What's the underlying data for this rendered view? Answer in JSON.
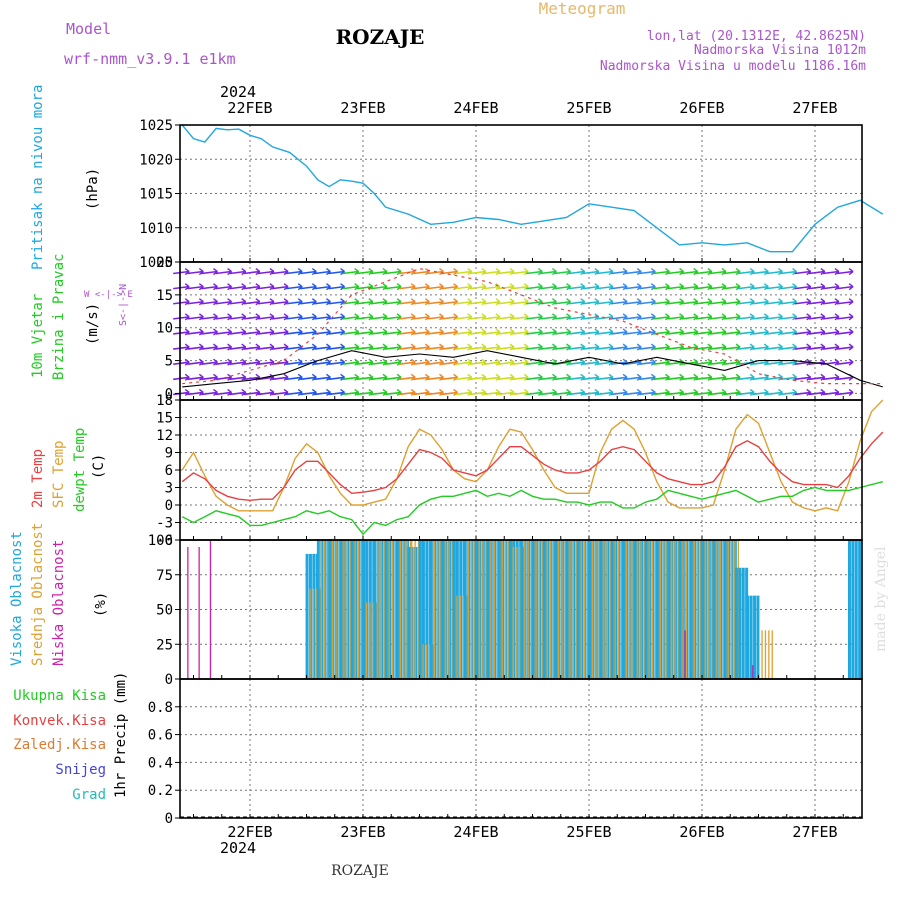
{
  "header": {
    "model_label": "Model",
    "model_name": "wrf-nmm_v3.9.1  e1km",
    "station": "ROZAJE",
    "meteogram": "Meteogram",
    "lonlat": "lon,lat (20.1312E, 42.8625N)",
    "elevation": "Nadmorska Visina 1012m",
    "model_elevation": "Nadmorska Visina u modelu 1186.16m",
    "footer_station": "ROZAJE",
    "watermark": "made by Angel"
  },
  "colors": {
    "pressure": "#1fa7e0",
    "green": "#22cc22",
    "red": "#e84040",
    "orange": "#e0a030",
    "magenta": "#cc22aa",
    "purple": "#aa55cc",
    "blue": "#4444dd",
    "teal": "#22bbbb",
    "title_gold": "#e6b86a"
  },
  "time_axis": {
    "top_year": "2024",
    "bottom_year": "2024",
    "days": [
      "22FEB",
      "23FEB",
      "24FEB",
      "25FEB",
      "26FEB",
      "27FEB"
    ]
  },
  "chart_data": [
    {
      "type": "line",
      "panel": "pressure",
      "ylabel_main": "Pritisak na nivou mora",
      "ylabel_unit": "(hPa)",
      "ylim": [
        1005,
        1025
      ],
      "yticks": [
        1005,
        1010,
        1015,
        1020,
        1025
      ],
      "x_days": [
        -0.6,
        -0.5,
        -0.4,
        -0.3,
        -0.2,
        -0.1,
        0,
        0.1,
        0.2,
        0.35,
        0.5,
        0.6,
        0.7,
        0.8,
        0.9,
        1.0,
        1.1,
        1.2,
        1.4,
        1.6,
        1.8,
        2.0,
        2.2,
        2.4,
        2.6,
        2.8,
        3.0,
        3.2,
        3.4,
        3.6,
        3.8,
        4.0,
        4.2,
        4.4,
        4.6,
        4.8,
        5.0,
        5.2,
        5.4,
        5.6
      ],
      "series": [
        {
          "values": [
            1025,
            1023,
            1022.5,
            1024.5,
            1024.3,
            1024.4,
            1023.5,
            1023,
            1021.8,
            1021,
            1019,
            1017,
            1016,
            1017,
            1016.8,
            1016.5,
            1015,
            1013,
            1012,
            1010.5,
            1010.8,
            1011.5,
            1011.2,
            1010.5,
            1011,
            1011.5,
            1013.5,
            1013,
            1012.5,
            1010,
            1007.5,
            1007.8,
            1007.5,
            1007.8,
            1006.5,
            1006.5,
            1010.5,
            1013,
            1014,
            1012
          ]
        }
      ]
    },
    {
      "type": "line",
      "panel": "wind",
      "ylabel_main": "10m Vjetar",
      "ylabel_sub": "Brzina i Pravac",
      "ylabel_unit": "(m/s)",
      "compass": "W  <-|->  E",
      "compass_vertical": "S<-|->N",
      "ylim": [
        -1,
        20
      ],
      "yticks": [
        0,
        5,
        10,
        15,
        20
      ],
      "x_days": [
        -0.6,
        -0.3,
        0,
        0.3,
        0.6,
        0.9,
        1.2,
        1.5,
        1.8,
        2.1,
        2.4,
        2.7,
        3.0,
        3.3,
        3.6,
        3.9,
        4.2,
        4.5,
        4.8,
        5.1,
        5.4,
        5.6
      ],
      "series": [
        {
          "name": "speed",
          "values": [
            1,
            1.5,
            2,
            3,
            5,
            6.5,
            5.5,
            6,
            5.5,
            6.5,
            5.5,
            4.5,
            5.5,
            4.5,
            5.5,
            4.5,
            3.5,
            5,
            5,
            4.5,
            2,
            1
          ]
        },
        {
          "name": "gust",
          "values": [
            1.5,
            2,
            3.5,
            5,
            9,
            15,
            17,
            19,
            18,
            17,
            15,
            13,
            12,
            11,
            9,
            7,
            6,
            3,
            2,
            1.5,
            1.5,
            1.5
          ]
        }
      ]
    },
    {
      "type": "line",
      "panel": "temperature",
      "ylabel_1": "2m Temp",
      "ylabel_2": "SFC Temp",
      "ylabel_3": "dewpt Temp",
      "ylabel_unit": "(C)",
      "ylim": [
        -6,
        18
      ],
      "yticks": [
        -6,
        -3,
        0,
        3,
        6,
        9,
        12,
        15,
        18
      ],
      "x_days": [
        -0.6,
        -0.5,
        -0.4,
        -0.3,
        -0.2,
        -0.1,
        0,
        0.1,
        0.2,
        0.3,
        0.4,
        0.5,
        0.6,
        0.7,
        0.8,
        0.9,
        1.0,
        1.1,
        1.2,
        1.3,
        1.4,
        1.5,
        1.6,
        1.7,
        1.8,
        1.9,
        2.0,
        2.1,
        2.2,
        2.3,
        2.4,
        2.5,
        2.6,
        2.7,
        2.8,
        2.9,
        3.0,
        3.1,
        3.2,
        3.3,
        3.4,
        3.5,
        3.6,
        3.7,
        3.8,
        3.9,
        4.0,
        4.1,
        4.2,
        4.3,
        4.4,
        4.5,
        4.6,
        4.7,
        4.8,
        4.9,
        5.0,
        5.1,
        5.2,
        5.3,
        5.4,
        5.5,
        5.6
      ],
      "series": [
        {
          "name": "2m Temp",
          "values": [
            4,
            5.5,
            4.5,
            2.5,
            1.5,
            1,
            0.8,
            1,
            1,
            3,
            6,
            7.5,
            7.5,
            5.5,
            3.5,
            2,
            2.2,
            2.5,
            3,
            4.5,
            7,
            9.5,
            9,
            8,
            6,
            5.5,
            5,
            6,
            8,
            10,
            10,
            8.5,
            7,
            6,
            5.5,
            5.5,
            6,
            7.5,
            9.5,
            10,
            9.5,
            7.5,
            5.5,
            4.5,
            4,
            3.5,
            3.5,
            4,
            6.5,
            10,
            11,
            10,
            7.5,
            5.5,
            4,
            3.5,
            3.5,
            3.5,
            3,
            5,
            8,
            10.5,
            12.5
          ]
        },
        {
          "name": "SFC Temp",
          "values": [
            6,
            9,
            5,
            1.5,
            0,
            -1,
            -1,
            -1,
            -1,
            3,
            8,
            10.5,
            9,
            5,
            2,
            0,
            0,
            0.5,
            1,
            4.5,
            10,
            13,
            12,
            9.5,
            6,
            4.5,
            4,
            6,
            10,
            13,
            12.5,
            9.5,
            6,
            3,
            2,
            2,
            2,
            9,
            13,
            14.5,
            13,
            9,
            4,
            0.5,
            -0.5,
            -0.5,
            -0.5,
            0,
            6,
            13,
            15.5,
            14,
            9,
            4,
            0.5,
            -0.5,
            -1,
            -0.5,
            -1,
            4,
            11,
            16,
            18
          ]
        },
        {
          "name": "dewpt Temp",
          "values": [
            -2,
            -3,
            -2,
            -1,
            -1.5,
            -2,
            -3.5,
            -3.5,
            -3,
            -2.5,
            -2,
            -1,
            -1.5,
            -1,
            -2,
            -2.5,
            -5,
            -3,
            -3.5,
            -2.5,
            -2,
            0,
            1,
            1.5,
            1.5,
            2,
            2.5,
            1.5,
            2,
            1.5,
            2.5,
            1.5,
            1,
            1,
            0.5,
            0.5,
            0,
            0.5,
            0.5,
            -0.5,
            -0.5,
            0.5,
            1,
            2.5,
            2,
            1.5,
            1,
            1.5,
            2,
            2.5,
            1.5,
            0.5,
            1,
            1.5,
            1.5,
            2.5,
            3,
            2.5,
            2.5,
            2.5,
            3,
            3.5,
            4
          ]
        }
      ]
    },
    {
      "type": "bar",
      "panel": "cloud",
      "ylabel_1": "Visoka Oblacnost",
      "ylabel_2": "Srednja Oblacnost",
      "ylabel_3": "Niska Oblacnost",
      "ylabel_unit": "(%)",
      "ylim": [
        0,
        100
      ],
      "yticks": [
        0,
        25,
        50,
        75,
        100
      ],
      "x_days": [
        -0.55,
        -0.45,
        -0.35,
        -0.25,
        -0.15,
        -0.05,
        0.05,
        0.15,
        0.25,
        0.35,
        0.45,
        0.55,
        0.65,
        0.75,
        0.85,
        0.95,
        1.05,
        1.15,
        1.25,
        1.35,
        1.45,
        1.55,
        1.65,
        1.75,
        1.85,
        1.95,
        2.05,
        2.15,
        2.25,
        2.35,
        2.45,
        2.55,
        2.65,
        2.75,
        2.85,
        2.95,
        3.05,
        3.15,
        3.25,
        3.35,
        3.45,
        3.55,
        3.65,
        3.75,
        3.85,
        3.95,
        4.05,
        4.15,
        4.25,
        4.35,
        4.45,
        4.55,
        4.65,
        4.75,
        4.85,
        4.95,
        5.05,
        5.15,
        5.25,
        5.35,
        5.45,
        5.55
      ],
      "series": [
        {
          "name": "Visoka Oblacnost",
          "values": [
            0,
            0,
            0,
            0,
            0,
            0,
            0,
            0,
            0,
            0,
            0,
            90,
            100,
            100,
            100,
            100,
            100,
            100,
            100,
            100,
            95,
            100,
            100,
            100,
            100,
            100,
            100,
            100,
            100,
            100,
            100,
            100,
            100,
            100,
            100,
            100,
            100,
            100,
            100,
            100,
            100,
            100,
            100,
            100,
            100,
            100,
            100,
            100,
            100,
            80,
            60,
            0,
            0,
            0,
            0,
            0,
            0,
            0,
            0,
            100,
            0,
            0
          ]
        },
        {
          "name": "Srednja Oblacnost",
          "values": [
            0,
            0,
            0,
            0,
            0,
            0,
            0,
            0,
            0,
            0,
            0,
            65,
            100,
            100,
            100,
            100,
            55,
            100,
            100,
            100,
            100,
            25,
            100,
            100,
            60,
            100,
            100,
            100,
            100,
            95,
            100,
            100,
            100,
            100,
            100,
            100,
            100,
            100,
            100,
            100,
            100,
            100,
            100,
            100,
            100,
            100,
            100,
            100,
            100,
            0,
            0,
            35,
            0,
            0,
            0,
            0,
            0,
            0,
            0,
            0,
            0,
            0
          ]
        },
        {
          "name": "Niska Oblacnost",
          "values": [
            95,
            95,
            100,
            0,
            0,
            0,
            0,
            0,
            0,
            0,
            0,
            0,
            0,
            0,
            0,
            0,
            0,
            0,
            0,
            0,
            0,
            0,
            0,
            0,
            0,
            0,
            0,
            0,
            0,
            0,
            0,
            0,
            0,
            0,
            0,
            0,
            0,
            0,
            0,
            0,
            0,
            0,
            0,
            0,
            35,
            0,
            0,
            0,
            0,
            0,
            10,
            0,
            0,
            0,
            0,
            0,
            0,
            0,
            0,
            0,
            0,
            0
          ]
        }
      ]
    },
    {
      "type": "line",
      "panel": "precip",
      "ylabel_unit": "1hr Precip (mm)",
      "legend": [
        "Ukupna Kisa",
        "Konvek.Kisa",
        "Zaledj.Kisa",
        "Snijeg",
        "Grad"
      ],
      "ylim": [
        0,
        1
      ],
      "yticks": [
        0,
        0.2,
        0.4,
        0.6,
        0.8
      ],
      "series": [
        {
          "name": "Ukupna Kisa",
          "values": [
            0
          ]
        }
      ]
    }
  ]
}
